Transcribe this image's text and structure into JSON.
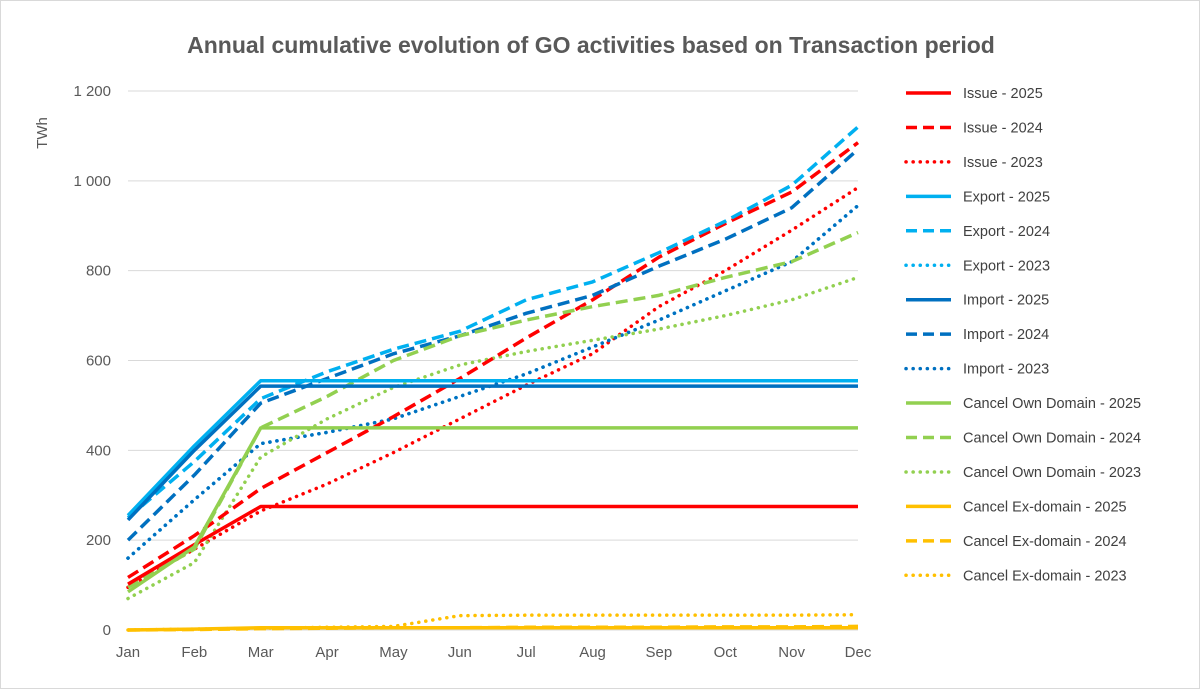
{
  "chart_data": {
    "type": "line",
    "title": "Annual cumulative evolution of GO activities based on Transaction period",
    "ylabel": "TWh",
    "xlabel": "",
    "categories": [
      "Jan",
      "Feb",
      "Mar",
      "Apr",
      "May",
      "Jun",
      "Jul",
      "Aug",
      "Sep",
      "Oct",
      "Nov",
      "Dec"
    ],
    "ylim": [
      0,
      1200
    ],
    "yticks": [
      0,
      200,
      400,
      600,
      800,
      1000,
      1200
    ],
    "ytick_labels": [
      "0",
      "200",
      "400",
      "600",
      "800",
      "1 000",
      "1 200"
    ],
    "grid": "horizontal",
    "legend": "right",
    "series": [
      {
        "name": "Issue - 2025",
        "color": "#FF0000",
        "style": "solid",
        "values": [
          102,
          190,
          275,
          275,
          275,
          275,
          275,
          275,
          275,
          275,
          275,
          275
        ]
      },
      {
        "name": "Issue - 2024",
        "color": "#FF0000",
        "style": "dashed",
        "values": [
          117,
          210,
          315,
          395,
          475,
          560,
          650,
          735,
          830,
          905,
          975,
          1085
        ]
      },
      {
        "name": "Issue - 2023",
        "color": "#FF0000",
        "style": "dotted",
        "values": [
          95,
          180,
          265,
          325,
          395,
          470,
          545,
          615,
          720,
          800,
          890,
          985
        ]
      },
      {
        "name": "Export - 2025",
        "color": "#00B0F0",
        "style": "solid",
        "values": [
          255,
          410,
          555,
          555,
          555,
          555,
          555,
          555,
          555,
          555,
          555,
          555
        ]
      },
      {
        "name": "Export - 2024",
        "color": "#00B0F0",
        "style": "dashed",
        "values": [
          250,
          375,
          515,
          575,
          625,
          665,
          735,
          775,
          840,
          910,
          990,
          1120
        ]
      },
      {
        "name": "Export - 2023",
        "color": "#00B0F0",
        "style": "dotted",
        "values": [
          160,
          290,
          415,
          440,
          470,
          520,
          570,
          630,
          690,
          755,
          820,
          945
        ]
      },
      {
        "name": "Import - 2025",
        "color": "#0070C0",
        "style": "solid",
        "values": [
          245,
          400,
          543,
          543,
          543,
          543,
          543,
          543,
          543,
          543,
          543,
          543
        ]
      },
      {
        "name": "Import - 2024",
        "color": "#0070C0",
        "style": "dashed",
        "values": [
          200,
          345,
          505,
          560,
          615,
          655,
          705,
          745,
          810,
          870,
          940,
          1070
        ]
      },
      {
        "name": "Import - 2023",
        "color": "#0070C0",
        "style": "dotted",
        "values": [
          160,
          290,
          415,
          440,
          470,
          520,
          570,
          630,
          690,
          755,
          820,
          945
        ]
      },
      {
        "name": "Cancel Own Domain - 2025",
        "color": "#92D050",
        "style": "solid",
        "values": [
          85,
          185,
          450,
          450,
          450,
          450,
          450,
          450,
          450,
          450,
          450,
          450
        ]
      },
      {
        "name": "Cancel Own Domain - 2024",
        "color": "#92D050",
        "style": "dashed",
        "values": [
          95,
          180,
          450,
          520,
          600,
          655,
          690,
          720,
          745,
          785,
          820,
          885
        ]
      },
      {
        "name": "Cancel Own Domain - 2023",
        "color": "#92D050",
        "style": "dotted",
        "values": [
          70,
          150,
          385,
          470,
          540,
          590,
          620,
          645,
          670,
          700,
          735,
          785
        ]
      },
      {
        "name": "Cancel Ex-domain - 2025",
        "color": "#FFC000",
        "style": "solid",
        "values": [
          0,
          2,
          5,
          5,
          5,
          5,
          5,
          5,
          5,
          5,
          5,
          5
        ]
      },
      {
        "name": "Cancel Ex-domain - 2024",
        "color": "#FFC000",
        "style": "dashed",
        "values": [
          0,
          1,
          3,
          4,
          5,
          5,
          6,
          6,
          6,
          7,
          7,
          8
        ]
      },
      {
        "name": "Cancel Ex-domain - 2023",
        "color": "#FFC000",
        "style": "dotted",
        "values": [
          0,
          2,
          4,
          6,
          8,
          32,
          33,
          33,
          33,
          33,
          33,
          34
        ]
      }
    ]
  }
}
